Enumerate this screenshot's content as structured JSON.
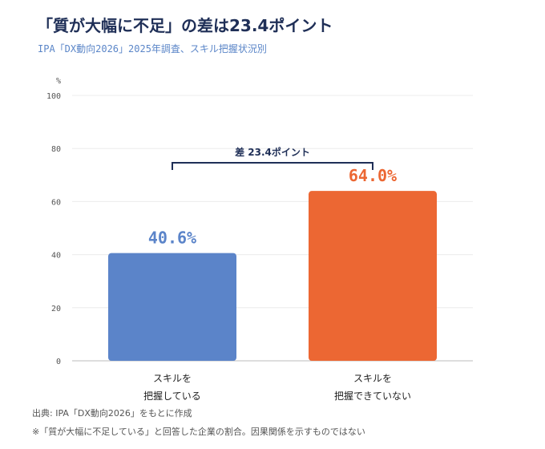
{
  "title": "「質が大幅に不足」の差は23.4ポイント",
  "subtitle": "IPA「DX動向2026」2025年調査、スキル把握状況別",
  "source": "出典: IPA「DX動向2026」をもとに作成",
  "note": "※「質が大幅に不足している」と回答した企業の割合。因果関係を示すものではない",
  "chart_data": {
    "type": "bar",
    "categories": [
      [
        "スキルを",
        "把握している"
      ],
      [
        "スキルを",
        "把握できていない"
      ]
    ],
    "values": [
      40.6,
      64.0
    ],
    "data_labels": [
      "40.6%",
      "64.0%"
    ],
    "colors": [
      "#5b84c9",
      "#ec6733"
    ],
    "ylabel": "%",
    "ylim": [
      0,
      100
    ],
    "yticks": [
      0,
      20,
      40,
      60,
      80,
      100
    ],
    "grid": true,
    "annotation": "差 23.4ポイント",
    "annotation_color": "#1f2f57"
  }
}
